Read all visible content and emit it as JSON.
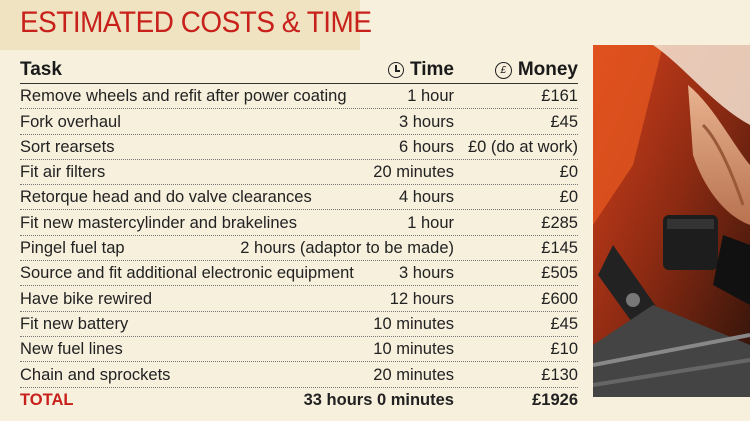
{
  "title": "ESTIMATED COSTS & TIME",
  "columns": {
    "task": "Task",
    "time": "Time",
    "money": "Money",
    "time_icon": "clock-icon",
    "money_icon": "pound-icon",
    "money_icon_symbol": "£"
  },
  "rows": [
    {
      "task": "Remove wheels and refit after power coating",
      "time": "1 hour",
      "money": "£161"
    },
    {
      "task": "Fork overhaul",
      "time": "3 hours",
      "money": "£45"
    },
    {
      "task": "Sort rearsets",
      "time": "6 hours",
      "money": "£0 (do at work)"
    },
    {
      "task": "Fit air filters",
      "time": "20 minutes",
      "money": "£0"
    },
    {
      "task": "Retorque head and do valve clearances",
      "time": "4 hours",
      "money": "£0"
    },
    {
      "task": "Fit new mastercylinder and brakelines",
      "time": "1 hour",
      "money": "£285"
    },
    {
      "task": "Pingel fuel tap",
      "time": "2 hours (adaptor to be made)",
      "money": "£145"
    },
    {
      "task": "Source and fit additional electronic equipment",
      "time": "3 hours",
      "money": "£505"
    },
    {
      "task": "Have bike rewired",
      "time": "12 hours",
      "money": "£600"
    },
    {
      "task": "Fit new battery",
      "time": "10 minutes",
      "money": "£45"
    },
    {
      "task": "New fuel lines",
      "time": "10 minutes",
      "money": "£10"
    },
    {
      "task": "Chain and sprockets",
      "time": "20 minutes",
      "money": "£130"
    }
  ],
  "total": {
    "label": "TOTAL",
    "time": "33 hours 0 minutes",
    "money": "£1926"
  },
  "colors": {
    "accent": "#c8201a",
    "background": "#f6f0dd",
    "title_bg": "#efe3c2"
  }
}
